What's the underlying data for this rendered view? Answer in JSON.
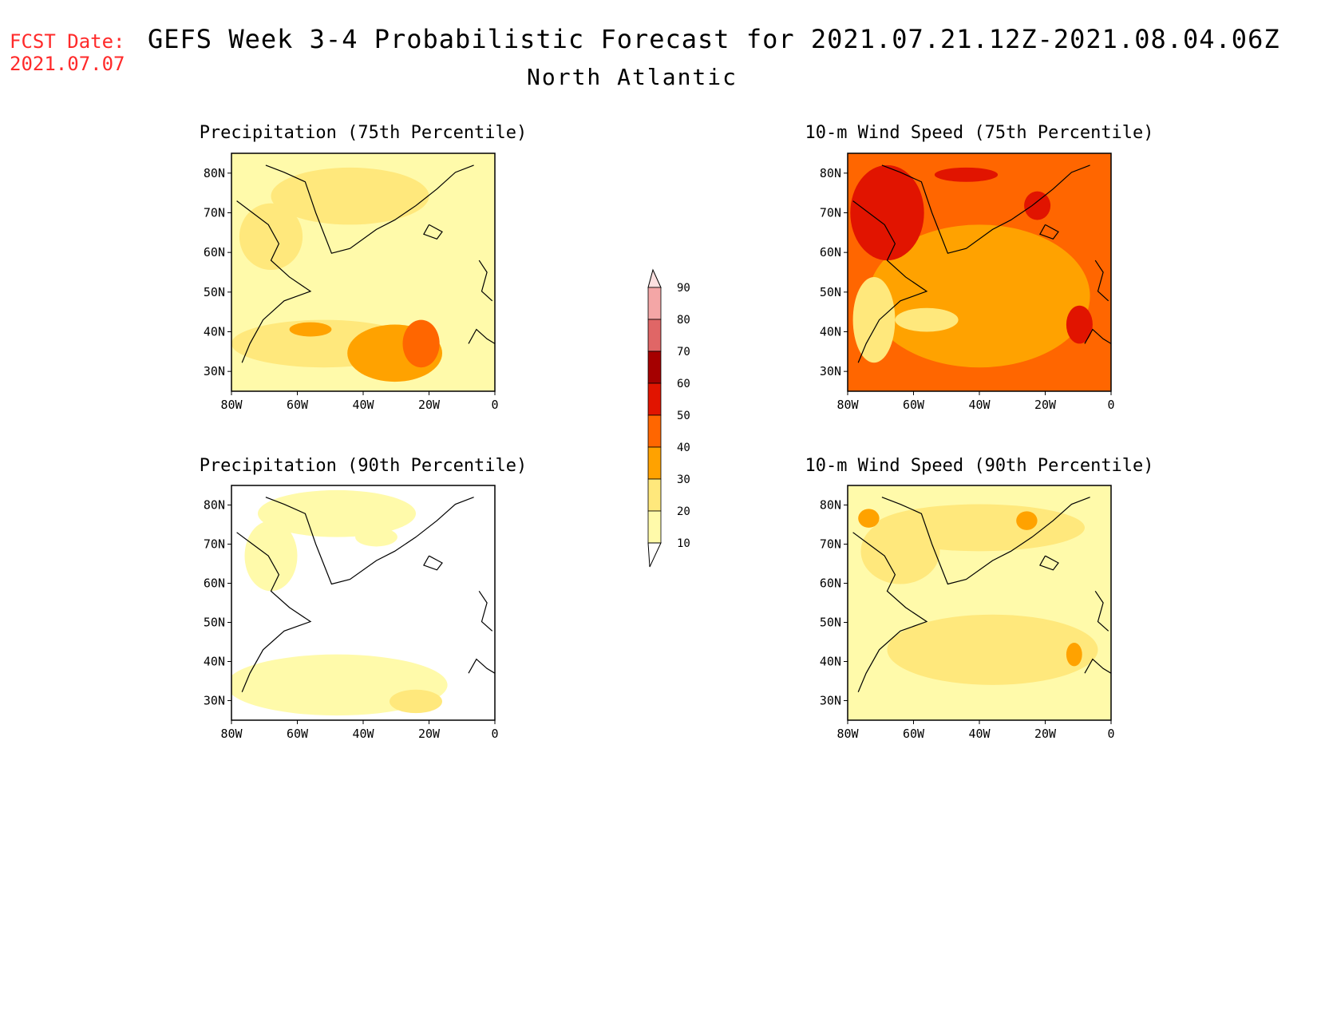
{
  "header": {
    "fcst_label": "FCST Date:",
    "fcst_date": "2021.07.07",
    "title": "GEFS Week 3-4 Probabilistic Forecast for 2021.07.21.12Z-2021.08.04.06Z",
    "region": "North Atlantic"
  },
  "axes": {
    "lat_ticks": [
      "80N",
      "70N",
      "60N",
      "50N",
      "40N",
      "30N"
    ],
    "lon_ticks": [
      "80W",
      "60W",
      "40W",
      "20W",
      "0"
    ]
  },
  "panels": [
    {
      "title": "Precipitation (75th Percentile)",
      "level": "low"
    },
    {
      "title": "10-m Wind Speed (75th Percentile)",
      "level": "high"
    },
    {
      "title": "Precipitation (90th Percentile)",
      "level": "sparse"
    },
    {
      "title": "10-m Wind Speed (90th Percentile)",
      "level": "mid"
    }
  ],
  "colorbar": {
    "ticks": [
      "90",
      "80",
      "70",
      "60",
      "50",
      "40",
      "30",
      "20",
      "10"
    ],
    "colors": {
      "10": "#fffaaa",
      "20": "#ffe87c",
      "30": "#ffa200",
      "40": "#ff6600",
      "50": "#e11400",
      "60": "#a50000",
      "70": "#e06666",
      "80": "#f4a6a6",
      "90": "#fde0e0"
    }
  }
}
